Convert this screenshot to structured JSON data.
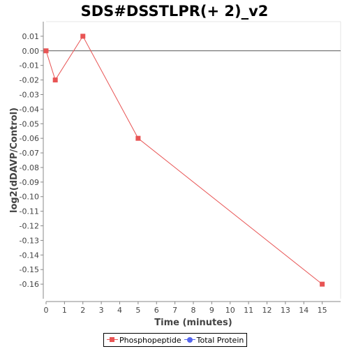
{
  "colors": {
    "phosphopeptide": "#e85454",
    "total_protein": "#5566ee",
    "axis": "#888888",
    "zero_line": "#555555"
  },
  "legend": {
    "items": [
      {
        "label": "Phosphopeptide",
        "marker": "square",
        "color_key": "phosphopeptide"
      },
      {
        "label": "Total Protein",
        "marker": "circle",
        "color_key": "total_protein"
      }
    ],
    "placement": "bottom"
  },
  "chart_data": {
    "type": "line",
    "title": "SDS#DSSTLPR(+ 2)_v2",
    "xlabel": "Time (minutes)",
    "ylabel": "log2(dDAVP/Control)",
    "xlim": [
      0,
      16
    ],
    "ylim": [
      -0.17,
      0.02
    ],
    "xticks": [
      0,
      1,
      2,
      3,
      4,
      5,
      6,
      7,
      8,
      9,
      10,
      11,
      12,
      13,
      14,
      15
    ],
    "yticks": [
      0.01,
      0.0,
      -0.01,
      -0.02,
      -0.03,
      -0.04,
      -0.05,
      -0.06,
      -0.07,
      -0.08,
      -0.09,
      -0.1,
      -0.11,
      -0.12,
      -0.13,
      -0.14,
      -0.15,
      -0.16
    ],
    "ytick_labels": [
      "0.01",
      "0.00",
      "-0.01",
      "-0.02",
      "-0.03",
      "-0.04",
      "-0.05",
      "-0.06",
      "-0.07",
      "-0.08",
      "-0.09",
      "-0.10",
      "-0.11",
      "-0.12",
      "-0.13",
      "-0.14",
      "-0.15",
      "-0.16"
    ],
    "zero_line": true,
    "grid": false,
    "series": [
      {
        "name": "Phosphopeptide",
        "marker": "square",
        "x": [
          0,
          0.5,
          2,
          5,
          15
        ],
        "y": [
          0.0,
          -0.02,
          0.01,
          -0.06,
          -0.16
        ]
      }
    ]
  }
}
